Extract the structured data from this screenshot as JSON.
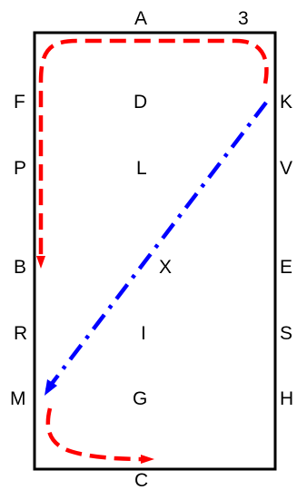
{
  "diagram": {
    "corner_number": "3",
    "letters": {
      "A": "A",
      "C": "C",
      "F": "F",
      "P": "P",
      "B": "B",
      "R": "R",
      "M": "M",
      "K": "K",
      "V": "V",
      "E": "E",
      "S": "S",
      "H": "H",
      "D": "D",
      "L": "L",
      "X": "X",
      "I": "I",
      "G": "G"
    },
    "colors": {
      "border": "#000000",
      "red_route": "#ff0000",
      "blue_route": "#0000ff",
      "text": "#000000"
    }
  }
}
